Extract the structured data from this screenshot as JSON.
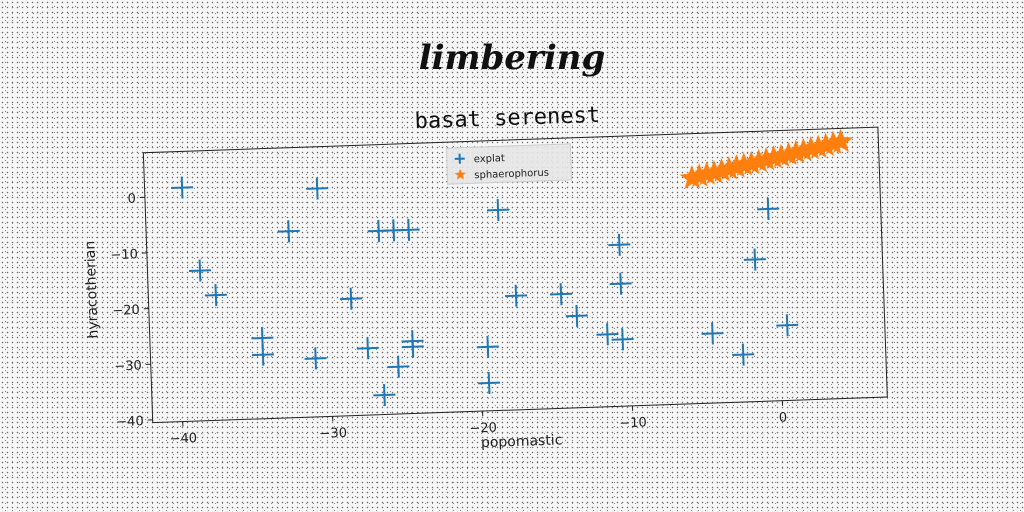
{
  "page_title": "limbering",
  "chart_data": {
    "type": "scatter",
    "title": "basat serenest",
    "xlabel": "popomastic",
    "ylabel": "hyracotherian",
    "xlim": [
      -42,
      7
    ],
    "ylim": [
      -40.5,
      8
    ],
    "xticks": [
      -40,
      -30,
      -20,
      -10,
      0
    ],
    "yticks": [
      0,
      -10,
      -20,
      -30,
      -40
    ],
    "legend_position": "top-center",
    "series": [
      {
        "name": "explat",
        "marker": "plus",
        "color": "#1f77b4",
        "points": [
          [
            -39.5,
            1.5
          ],
          [
            -30.5,
            0.5
          ],
          [
            -18.5,
            -4.5
          ],
          [
            -32.5,
            -7
          ],
          [
            -26.5,
            -7.5
          ],
          [
            -25.5,
            -7.5
          ],
          [
            -24.5,
            -7.5
          ],
          [
            -38.5,
            -13.5
          ],
          [
            -37.5,
            -18
          ],
          [
            -28.5,
            -19.5
          ],
          [
            -17.5,
            -20
          ],
          [
            -14.5,
            -20
          ],
          [
            -13.5,
            -24
          ],
          [
            -10.5,
            -11.5
          ],
          [
            -10.5,
            -18.5
          ],
          [
            -0.5,
            -6
          ],
          [
            -1.5,
            -15
          ],
          [
            -34.5,
            -26
          ],
          [
            -34.5,
            -29
          ],
          [
            -31,
            -30
          ],
          [
            -27.5,
            -28.5
          ],
          [
            -25.5,
            -32
          ],
          [
            -26.5,
            -37
          ],
          [
            -24.5,
            -27.5
          ],
          [
            -24.5,
            -28.5
          ],
          [
            -19.5,
            -29
          ],
          [
            -19.5,
            -35.5
          ],
          [
            -11.5,
            -27.5
          ],
          [
            -10.5,
            -28.5
          ],
          [
            -4.5,
            -28
          ],
          [
            -2.5,
            -32
          ],
          [
            0.5,
            -27
          ]
        ]
      },
      {
        "name": "sphaerophorus",
        "marker": "star",
        "color": "#ff7f0e",
        "points": [
          [
            -5.5,
            0
          ],
          [
            -5,
            0.3
          ],
          [
            -4.5,
            0.6
          ],
          [
            -4,
            0.8
          ],
          [
            -3.5,
            1.1
          ],
          [
            -3,
            1.4
          ],
          [
            -2.5,
            1.7
          ],
          [
            -2,
            2
          ],
          [
            -1.5,
            2.2
          ],
          [
            -1,
            2.5
          ],
          [
            -0.5,
            2.8
          ],
          [
            0,
            3.1
          ],
          [
            0.5,
            3.3
          ],
          [
            1,
            3.6
          ],
          [
            1.5,
            3.9
          ],
          [
            2,
            4.2
          ],
          [
            2.5,
            4.5
          ],
          [
            3,
            4.7
          ],
          [
            3.5,
            5
          ],
          [
            4,
            5.3
          ],
          [
            4.5,
            5.6
          ]
        ]
      }
    ]
  }
}
